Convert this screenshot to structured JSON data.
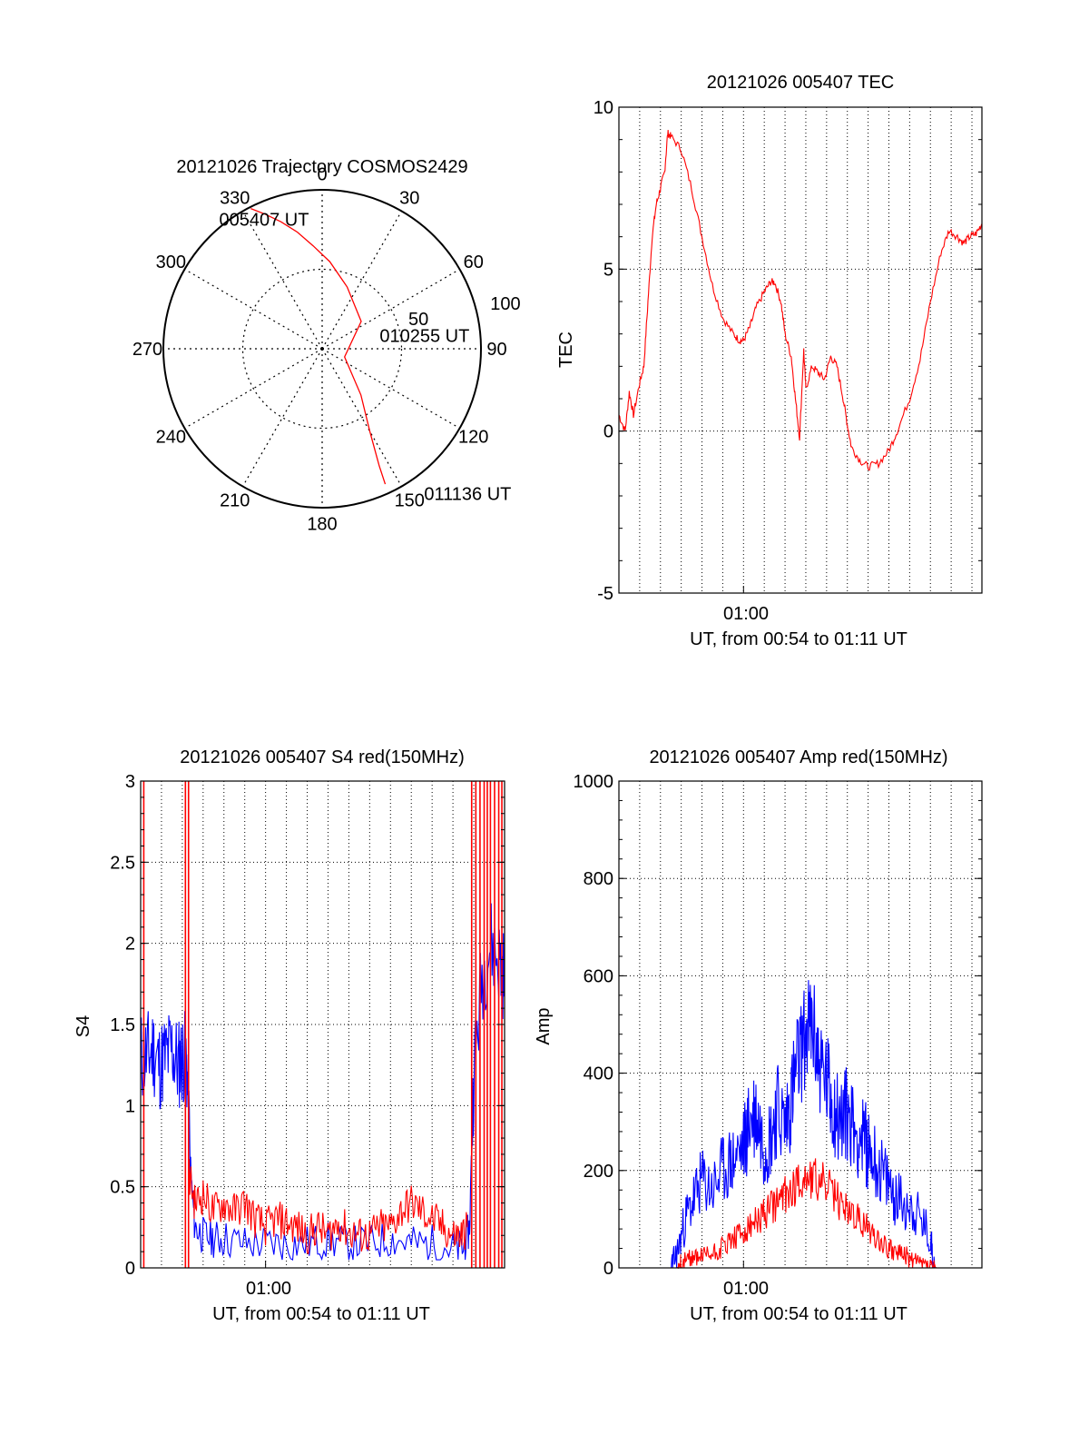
{
  "colors": {
    "red": "#ff0000",
    "blue": "#0000ff",
    "axis": "#000000",
    "grid": "#000000",
    "background": "#ffffff"
  },
  "chart_data": [
    {
      "id": "polar",
      "type": "polar-trajectory",
      "title": "20121026 Trajectory COSMOS2429",
      "angle_labels": [
        "0",
        "30",
        "60",
        "90",
        "120",
        "150",
        "180",
        "210",
        "240",
        "270",
        "300",
        "330"
      ],
      "radial_ticks": [
        50,
        100
      ],
      "radial_tick_labels": [
        "50",
        "100"
      ],
      "grid": true,
      "trajectory": {
        "color": "red",
        "azimuth": [
          333,
          337,
          342,
          348,
          355,
          5,
          22,
          55,
          110,
          140,
          150,
          154,
          155
        ],
        "radius": [
          99,
          92,
          84,
          75,
          65,
          55,
          42,
          30,
          15,
          38,
          60,
          82,
          94
        ]
      },
      "annotations": [
        {
          "text": "005407 UT",
          "azimuth": 340,
          "radius": 86
        },
        {
          "text": "010255 UT",
          "azimuth": 78,
          "radius": 37
        },
        {
          "text": "011136 UT",
          "azimuth": 145,
          "radius": 112
        }
      ]
    },
    {
      "id": "tec",
      "type": "line",
      "title": "20121026 005407 TEC",
      "ylabel": "TEC",
      "xlabel": "UT, from 00:54 to 01:11 UT",
      "xtick_labels": [
        "01:00"
      ],
      "xtick_minutes": [
        6.0
      ],
      "ylim": [
        -5,
        10
      ],
      "yticks": [
        -5,
        0,
        5,
        10
      ],
      "ytick_labels": [
        "-5",
        "0",
        "5",
        "10"
      ],
      "xlim_minutes": [
        0.0,
        17.48
      ],
      "grid": true,
      "series": [
        {
          "color": "red",
          "x": [
            0.0,
            0.3,
            0.5,
            0.7,
            1.0,
            1.2,
            1.4,
            1.6,
            1.8,
            2.0,
            2.2,
            2.35,
            2.5,
            3.0,
            3.5,
            4.0,
            4.5,
            5.0,
            5.5,
            5.8,
            6.0,
            6.3,
            6.6,
            7.0,
            7.3,
            7.5,
            7.8,
            8.0,
            8.3,
            8.5,
            8.7,
            8.9,
            9.0,
            9.3,
            9.6,
            9.9,
            10.2,
            10.5,
            10.8,
            11.0,
            11.2,
            11.6,
            12.0,
            12.5,
            13.0,
            13.4,
            14.0,
            14.5,
            15.0,
            15.5,
            15.9,
            16.3,
            16.6,
            16.9,
            17.2,
            17.48
          ],
          "y": [
            0.5,
            0.0,
            1.2,
            0.5,
            1.5,
            2.0,
            4.0,
            6.0,
            7.0,
            7.5,
            8.0,
            9.2,
            9.1,
            8.7,
            7.5,
            6.0,
            4.5,
            3.5,
            3.0,
            2.8,
            2.8,
            3.2,
            3.8,
            4.3,
            4.6,
            4.6,
            4.0,
            3.0,
            2.3,
            1.0,
            -0.2,
            2.5,
            1.3,
            2.0,
            1.8,
            1.6,
            2.3,
            2.0,
            1.0,
            0.2,
            -0.5,
            -0.9,
            -1.1,
            -1.0,
            -0.6,
            0.0,
            1.0,
            2.2,
            4.0,
            5.5,
            6.2,
            6.0,
            5.8,
            6.0,
            6.1,
            6.4
          ]
        }
      ]
    },
    {
      "id": "s4",
      "type": "line",
      "title": "20121026 005407 S4 red(150MHz)",
      "ylabel": "S4",
      "xlabel": "UT, from 00:54 to 01:11 UT",
      "xtick_labels": [
        "01:00"
      ],
      "xtick_minutes": [
        6.0
      ],
      "ylim": [
        0,
        3
      ],
      "yticks": [
        0,
        0.5,
        1,
        1.5,
        2,
        2.5,
        3
      ],
      "ytick_labels": [
        "0",
        "0.5",
        "1",
        "1.5",
        "2",
        "2.5",
        "3"
      ],
      "xlim_minutes": [
        0.0,
        17.48
      ],
      "grid": true,
      "series": [
        {
          "color": "blue",
          "x": [
            0.0,
            0.3,
            0.6,
            0.9,
            1.2,
            1.5,
            1.8,
            2.0,
            2.2,
            2.4,
            2.6,
            3.0,
            3.5,
            4.0,
            5.0,
            6.0,
            7.0,
            8.0,
            9.0,
            10.0,
            11.0,
            12.0,
            13.0,
            14.0,
            15.0,
            15.5,
            15.8,
            16.0,
            16.4,
            16.8,
            17.2,
            17.48
          ],
          "y": [
            1.3,
            1.3,
            1.35,
            1.25,
            1.3,
            1.35,
            1.25,
            1.3,
            1.3,
            0.6,
            0.25,
            0.2,
            0.18,
            0.18,
            0.15,
            0.15,
            0.15,
            0.15,
            0.17,
            0.15,
            0.15,
            0.18,
            0.15,
            0.15,
            0.12,
            0.12,
            0.25,
            1.2,
            1.8,
            2.0,
            1.9,
            1.8
          ]
        },
        {
          "color": "red",
          "x": [
            2.3,
            2.6,
            3.0,
            3.5,
            4.0,
            4.5,
            5.0,
            5.5,
            6.0,
            6.5,
            7.0,
            7.5,
            8.0,
            8.5,
            9.0,
            9.5,
            10.0,
            10.5,
            11.0,
            11.5,
            12.0,
            12.5,
            13.0,
            13.5,
            14.0,
            14.5,
            15.0,
            15.4,
            15.7
          ],
          "y": [
            0.6,
            0.4,
            0.45,
            0.35,
            0.4,
            0.35,
            0.4,
            0.3,
            0.25,
            0.3,
            0.28,
            0.25,
            0.2,
            0.25,
            0.2,
            0.28,
            0.22,
            0.2,
            0.2,
            0.25,
            0.25,
            0.35,
            0.4,
            0.35,
            0.3,
            0.25,
            0.2,
            0.2,
            0.25
          ]
        }
      ]
    },
    {
      "id": "amp",
      "type": "line",
      "title": "20121026 005407 Amp red(150MHz)",
      "ylabel": "Amp",
      "xlabel": "UT, from 00:54 to 01:11 UT",
      "xtick_labels": [
        "01:00"
      ],
      "xtick_minutes": [
        6.0
      ],
      "ylim": [
        0,
        1000
      ],
      "yticks": [
        0,
        200,
        400,
        600,
        800,
        1000
      ],
      "ytick_labels": [
        "0",
        "200",
        "400",
        "600",
        "800",
        "1000"
      ],
      "xlim_minutes": [
        0.0,
        17.48
      ],
      "grid": true,
      "series": [
        {
          "color": "blue",
          "x": [
            0.0,
            2.5,
            2.8,
            3.2,
            3.6,
            4.0,
            4.5,
            5.0,
            5.5,
            6.0,
            6.3,
            6.6,
            7.0,
            7.3,
            7.6,
            8.0,
            8.3,
            8.6,
            9.0,
            9.3,
            9.6,
            10.0,
            10.3,
            10.6,
            11.0,
            11.4,
            11.8,
            12.2,
            12.6,
            13.0,
            13.4,
            14.0,
            14.5,
            15.0,
            15.2,
            15.5,
            16.0,
            17.48
          ],
          "y": [
            0,
            0,
            30,
            100,
            140,
            180,
            160,
            200,
            220,
            250,
            300,
            320,
            250,
            270,
            330,
            290,
            350,
            420,
            480,
            500,
            430,
            380,
            340,
            300,
            320,
            280,
            260,
            230,
            200,
            170,
            140,
            130,
            100,
            60,
            0,
            0,
            0,
            0
          ]
        },
        {
          "color": "red",
          "x": [
            0.0,
            2.8,
            3.0,
            3.5,
            4.0,
            4.5,
            5.0,
            5.5,
            6.0,
            6.5,
            7.0,
            7.5,
            8.0,
            8.5,
            9.0,
            9.5,
            10.0,
            10.5,
            11.0,
            11.5,
            12.0,
            12.5,
            13.0,
            13.5,
            14.0,
            14.5,
            15.0,
            15.3,
            17.48
          ],
          "y": [
            0,
            0,
            10,
            20,
            25,
            30,
            45,
            60,
            70,
            90,
            110,
            130,
            150,
            170,
            190,
            180,
            170,
            140,
            120,
            100,
            80,
            60,
            40,
            30,
            20,
            10,
            5,
            0,
            0
          ]
        }
      ]
    }
  ]
}
